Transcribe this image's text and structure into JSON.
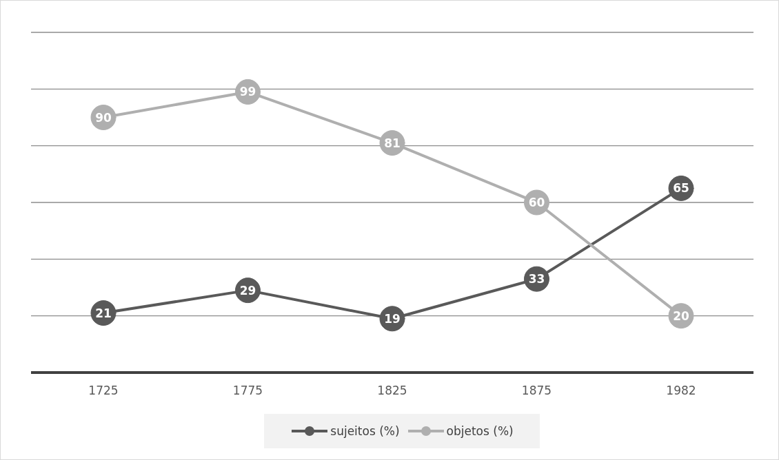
{
  "chart_data": {
    "type": "line",
    "categories": [
      "1725",
      "1775",
      "1825",
      "1875",
      "1982"
    ],
    "series": [
      {
        "name": "sujeitos (%)",
        "color": "#595959",
        "values": [
          21,
          29,
          19,
          33,
          65
        ]
      },
      {
        "name": "objetos (%)",
        "color": "#afafaf",
        "values": [
          90,
          99,
          81,
          60,
          20
        ]
      }
    ],
    "tick_labels": "x",
    "grid": "y",
    "legend": "bottom",
    "marker": "circle",
    "line_style": "solid",
    "data_labels": true
  }
}
